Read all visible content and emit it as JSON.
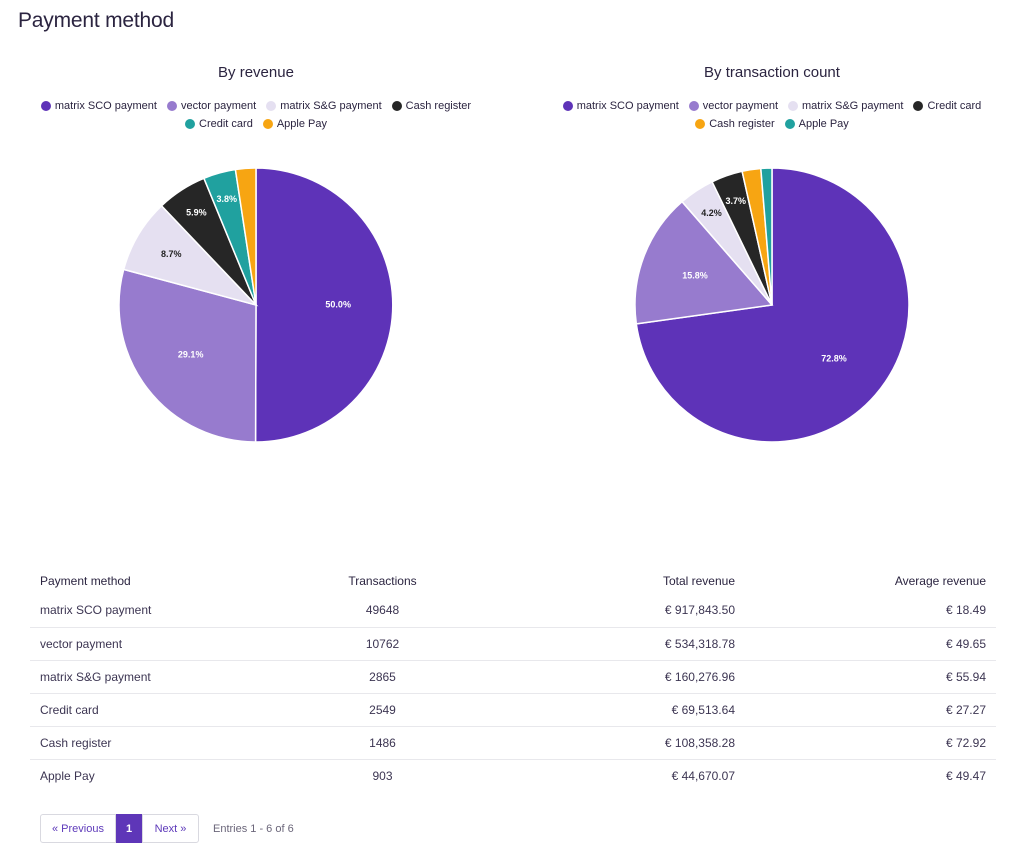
{
  "page": {
    "title": "Payment method"
  },
  "colors": {
    "matrix_sco": "#5e33b8",
    "vector": "#977bce",
    "matrix_sg": "#e5e0f1",
    "cash_register": "#262626",
    "credit_card": "#20a19f",
    "apple_pay": "#f7a512"
  },
  "chart_data": [
    {
      "type": "pie",
      "title": "By revenue",
      "legend": [
        {
          "label": "matrix SCO payment",
          "color": "#5e33b8"
        },
        {
          "label": "vector payment",
          "color": "#977bce"
        },
        {
          "label": "matrix S&G payment",
          "color": "#e5e0f1"
        },
        {
          "label": "Cash register",
          "color": "#262626"
        },
        {
          "label": "Credit card",
          "color": "#20a19f"
        },
        {
          "label": "Apple Pay",
          "color": "#f7a512"
        }
      ],
      "slices": [
        {
          "label": "matrix SCO payment",
          "value": 50.0,
          "display": "50.0%",
          "color": "#5e33b8",
          "text_color": "#ffffff"
        },
        {
          "label": "vector payment",
          "value": 29.1,
          "display": "29.1%",
          "color": "#977bce",
          "text_color": "#ffffff"
        },
        {
          "label": "matrix S&G payment",
          "value": 8.7,
          "display": "8.7%",
          "color": "#e5e0f1",
          "text_color": "#222222"
        },
        {
          "label": "Cash register",
          "value": 5.9,
          "display": "5.9%",
          "color": "#262626",
          "text_color": "#ffffff"
        },
        {
          "label": "Credit card",
          "value": 3.8,
          "display": "3.8%",
          "color": "#20a19f",
          "text_color": "#ffffff"
        },
        {
          "label": "Apple Pay",
          "value": 2.4,
          "display": "",
          "color": "#f7a512",
          "text_color": "#ffffff"
        }
      ]
    },
    {
      "type": "pie",
      "title": "By transaction count",
      "legend": [
        {
          "label": "matrix SCO payment",
          "color": "#5e33b8"
        },
        {
          "label": "vector payment",
          "color": "#977bce"
        },
        {
          "label": "matrix S&G payment",
          "color": "#e5e0f1"
        },
        {
          "label": "Credit card",
          "color": "#262626"
        },
        {
          "label": "Cash register",
          "color": "#f7a512"
        },
        {
          "label": "Apple Pay",
          "color": "#20a19f"
        }
      ],
      "slices": [
        {
          "label": "matrix SCO payment",
          "value": 72.8,
          "display": "72.8%",
          "color": "#5e33b8",
          "text_color": "#ffffff"
        },
        {
          "label": "vector payment",
          "value": 15.8,
          "display": "15.8%",
          "color": "#977bce",
          "text_color": "#ffffff"
        },
        {
          "label": "matrix S&G payment",
          "value": 4.2,
          "display": "4.2%",
          "color": "#e5e0f1",
          "text_color": "#222222"
        },
        {
          "label": "Credit card",
          "value": 3.7,
          "display": "3.7%",
          "color": "#262626",
          "text_color": "#ffffff"
        },
        {
          "label": "Cash register",
          "value": 2.2,
          "display": "",
          "color": "#f7a512",
          "text_color": "#ffffff"
        },
        {
          "label": "Apple Pay",
          "value": 1.3,
          "display": "",
          "color": "#20a19f",
          "text_color": "#ffffff"
        }
      ]
    }
  ],
  "table": {
    "headers": {
      "method": "Payment method",
      "transactions": "Transactions",
      "total_revenue": "Total revenue",
      "average_revenue": "Average revenue"
    },
    "rows": [
      {
        "method": "matrix SCO payment",
        "transactions": "49648",
        "total_revenue": "€ 917,843.50",
        "average_revenue": "€ 18.49"
      },
      {
        "method": "vector payment",
        "transactions": "10762",
        "total_revenue": "€ 534,318.78",
        "average_revenue": "€ 49.65"
      },
      {
        "method": "matrix S&G payment",
        "transactions": "2865",
        "total_revenue": "€ 160,276.96",
        "average_revenue": "€ 55.94"
      },
      {
        "method": "Credit card",
        "transactions": "2549",
        "total_revenue": "€ 69,513.64",
        "average_revenue": "€ 27.27"
      },
      {
        "method": "Cash register",
        "transactions": "1486",
        "total_revenue": "€ 108,358.28",
        "average_revenue": "€ 72.92"
      },
      {
        "method": "Apple Pay",
        "transactions": "903",
        "total_revenue": "€ 44,670.07",
        "average_revenue": "€ 49.47"
      }
    ]
  },
  "pagination": {
    "prev_label": "« Previous",
    "current_page": "1",
    "next_label": "Next »",
    "entries_text": "Entries 1 - 6 of  6"
  }
}
